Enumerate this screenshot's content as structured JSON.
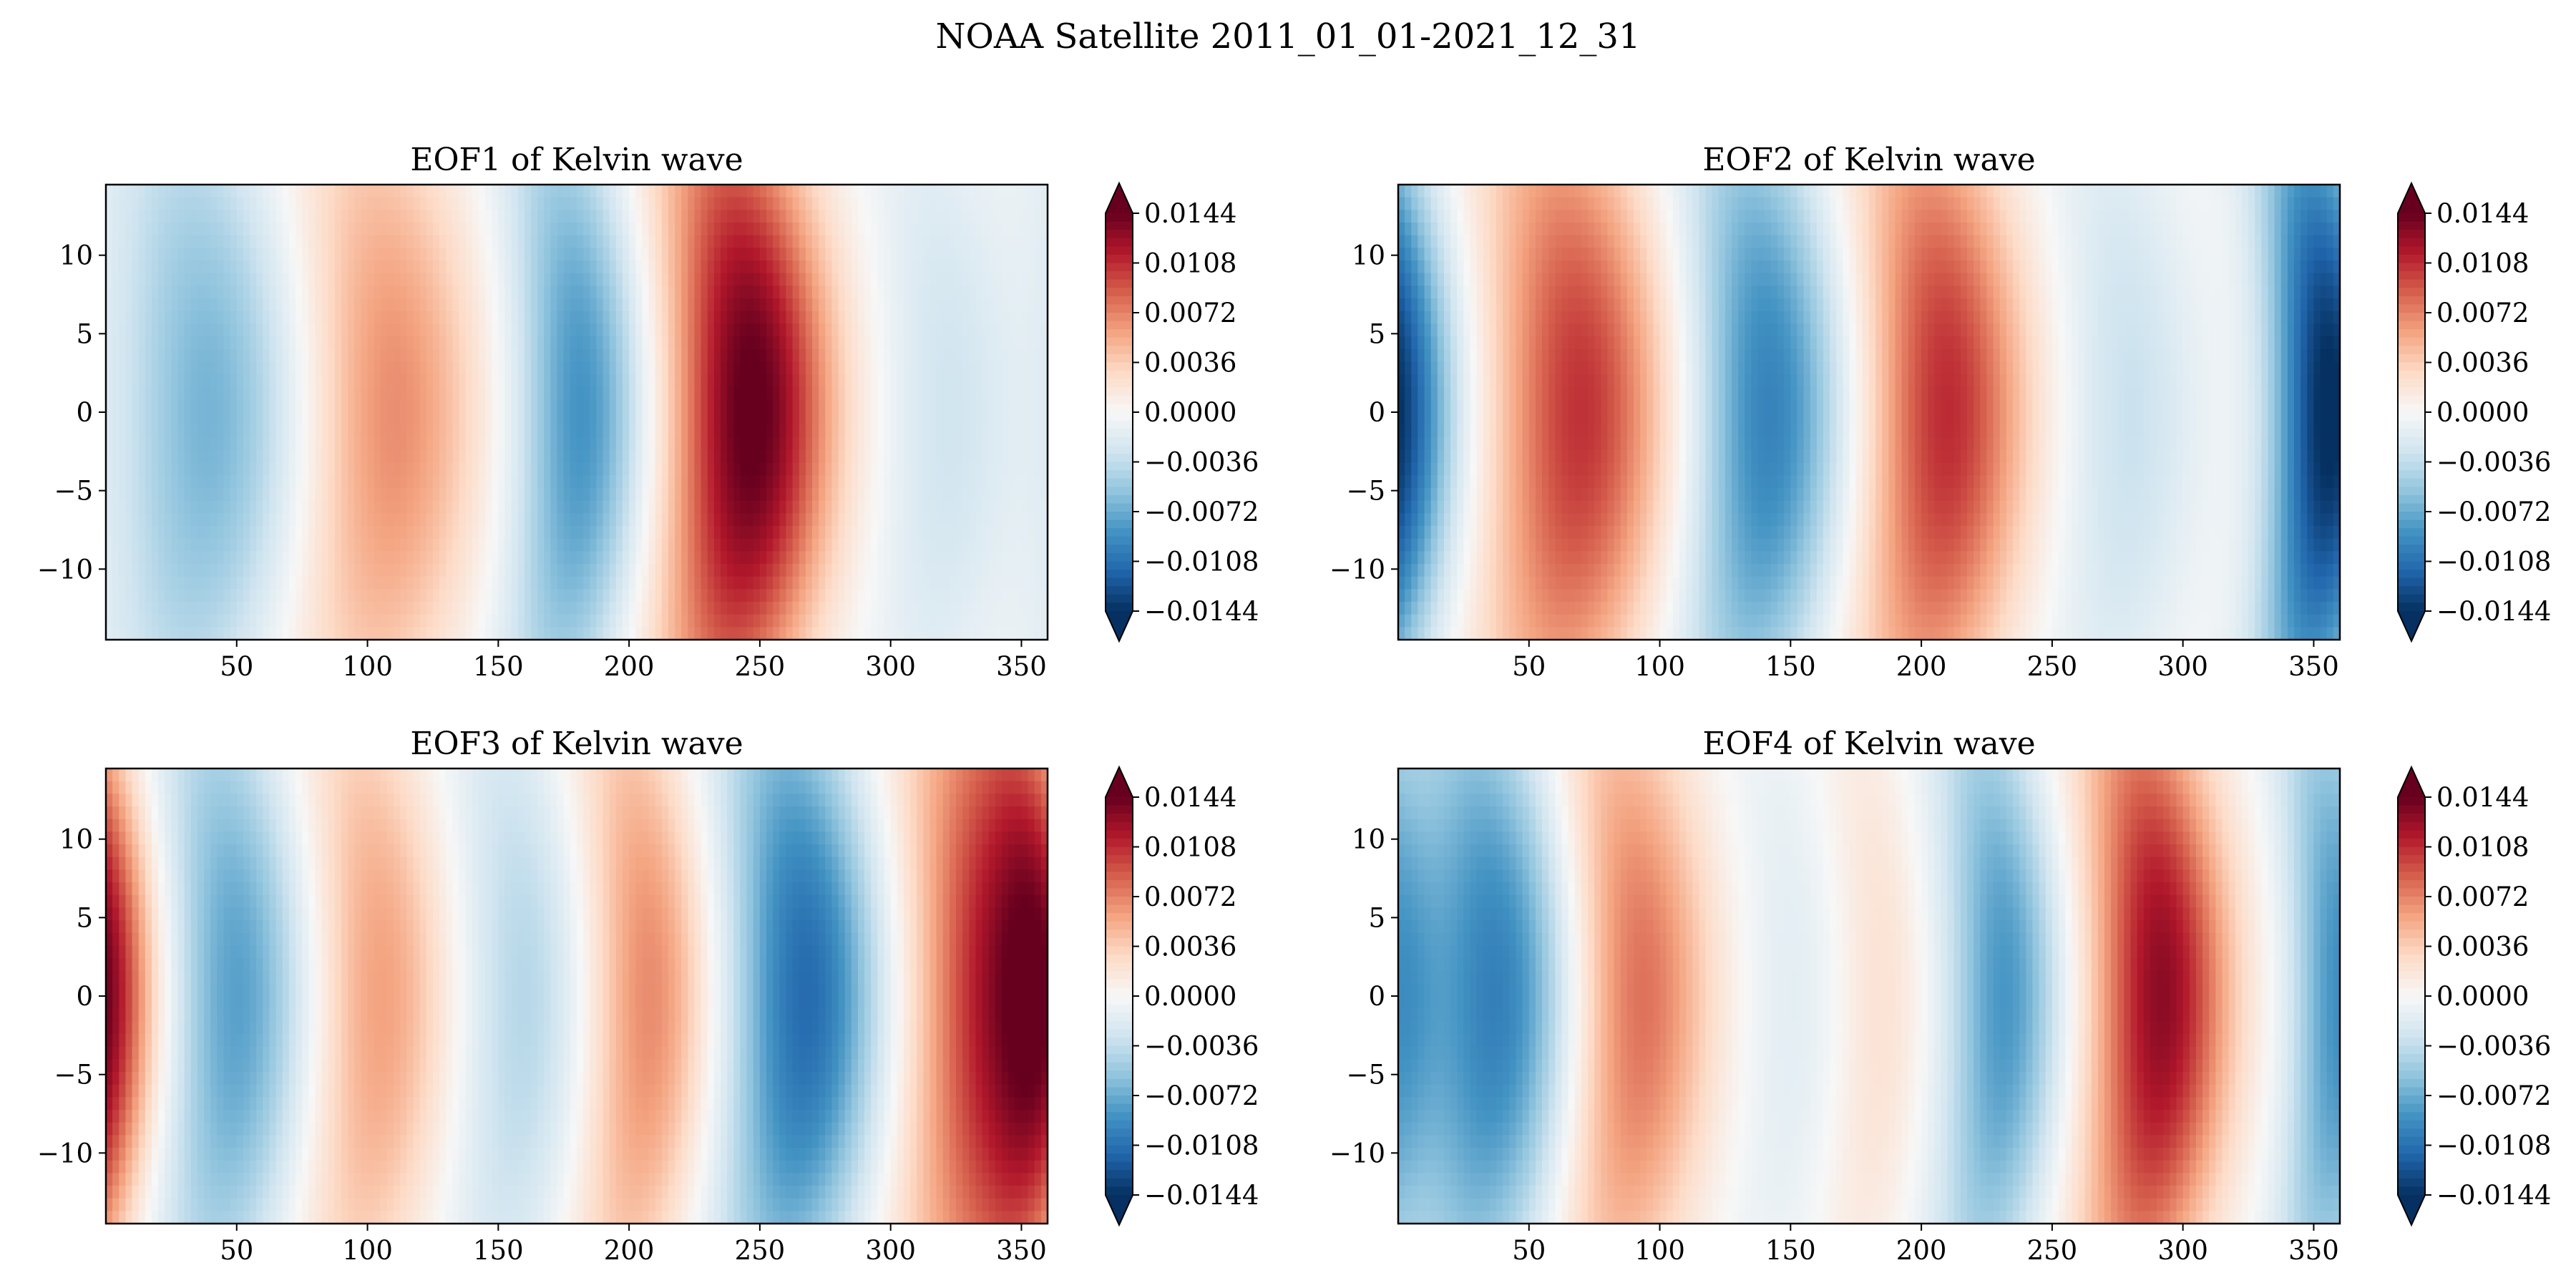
{
  "figure": {
    "suptitle": "NOAA Satellite 2011_01_01-2021_12_31"
  },
  "chart_data": [
    {
      "type": "heatmap",
      "title": "EOF1 of Kelvin wave",
      "xlabel": "",
      "ylabel": "",
      "xlim": [
        0,
        360
      ],
      "ylim": [
        -14.5,
        14.5
      ],
      "x_ticks": [
        "50",
        "100",
        "150",
        "200",
        "250",
        "300",
        "350"
      ],
      "y_ticks": [
        "10",
        "5",
        "0",
        "−5",
        "−10"
      ],
      "colorbar_ticks": [
        "0.0144",
        "0.0108",
        "0.0072",
        "0.0036",
        "0.0000",
        "−0.0036",
        "−0.0072",
        "−0.0108",
        "−0.0144"
      ],
      "colorbar_range": [
        -0.0144,
        0.0144
      ],
      "colormap": "RdBu_r",
      "extend": "both",
      "bands": [
        {
          "lon": 40,
          "amp": -0.0068,
          "width": 24
        },
        {
          "lon": 110,
          "amp": 0.0068,
          "width": 23
        },
        {
          "lon": 182,
          "amp": -0.0088,
          "width": 17
        },
        {
          "lon": 247,
          "amp": 0.015,
          "width": 21
        },
        {
          "lon": 322,
          "amp": -0.0028,
          "width": 18
        }
      ]
    },
    {
      "type": "heatmap",
      "title": "EOF2 of Kelvin wave",
      "xlabel": "",
      "ylabel": "",
      "xlim": [
        0,
        360
      ],
      "ylim": [
        -14.5,
        14.5
      ],
      "x_ticks": [
        "50",
        "100",
        "150",
        "200",
        "250",
        "300",
        "350"
      ],
      "y_ticks": [
        "10",
        "5",
        "0",
        "−5",
        "−10"
      ],
      "colorbar_ticks": [
        "0.0144",
        "0.0108",
        "0.0072",
        "0.0036",
        "0.0000",
        "−0.0036",
        "−0.0072",
        "−0.0108",
        "−0.0144"
      ],
      "colorbar_range": [
        -0.0144,
        0.0144
      ],
      "colormap": "RdBu_r",
      "extend": "both",
      "bands": [
        {
          "lon": 3,
          "amp": -0.0075,
          "width": 16
        },
        {
          "lon": 70,
          "amp": 0.0105,
          "width": 23
        },
        {
          "lon": 142,
          "amp": -0.0098,
          "width": 20
        },
        {
          "lon": 210,
          "amp": 0.0108,
          "width": 21
        },
        {
          "lon": 280,
          "amp": -0.0032,
          "width": 18
        },
        {
          "lon": 352,
          "amp": -0.0085,
          "width": 14
        }
      ]
    },
    {
      "type": "heatmap",
      "title": "EOF3 of Kelvin wave",
      "xlabel": "",
      "ylabel": "",
      "xlim": [
        0,
        360
      ],
      "ylim": [
        -14.5,
        14.5
      ],
      "x_ticks": [
        "50",
        "100",
        "150",
        "200",
        "250",
        "300",
        "350"
      ],
      "y_ticks": [
        "10",
        "5",
        "0",
        "−5",
        "−10"
      ],
      "colorbar_ticks": [
        "0.0144",
        "0.0108",
        "0.0072",
        "0.0036",
        "0.0000",
        "−0.0036",
        "−0.0072",
        "−0.0108",
        "−0.0144"
      ],
      "colorbar_range": [
        -0.0144,
        0.0144
      ],
      "colormap": "RdBu_r",
      "extend": "both",
      "bands": [
        {
          "lon": 0,
          "amp": 0.006,
          "width": 12
        },
        {
          "lon": 50,
          "amp": -0.008,
          "width": 19
        },
        {
          "lon": 105,
          "amp": 0.006,
          "width": 18
        },
        {
          "lon": 160,
          "amp": -0.0042,
          "width": 17
        },
        {
          "lon": 208,
          "amp": 0.007,
          "width": 16
        },
        {
          "lon": 268,
          "amp": -0.0112,
          "width": 20
        },
        {
          "lon": 342,
          "amp": 0.0122,
          "width": 22
        }
      ]
    },
    {
      "type": "heatmap",
      "title": "EOF4 of Kelvin wave",
      "xlabel": "",
      "ylabel": "",
      "xlim": [
        0,
        360
      ],
      "ylim": [
        -14.5,
        14.5
      ],
      "x_ticks": [
        "50",
        "100",
        "150",
        "200",
        "250",
        "300",
        "350"
      ],
      "y_ticks": [
        "10",
        "5",
        "0",
        "−5",
        "−10"
      ],
      "colorbar_ticks": [
        "0.0144",
        "0.0108",
        "0.0072",
        "0.0036",
        "0.0000",
        "−0.0036",
        "−0.0072",
        "−0.0108",
        "−0.0144"
      ],
      "colorbar_range": [
        -0.0144,
        0.0144
      ],
      "colormap": "RdBu_r",
      "extend": "both",
      "bands": [
        {
          "lon": 38,
          "amp": -0.01,
          "width": 21
        },
        {
          "lon": 92,
          "amp": 0.0082,
          "width": 19
        },
        {
          "lon": 150,
          "amp": -0.0016,
          "width": 14
        },
        {
          "lon": 185,
          "amp": 0.0022,
          "width": 12
        },
        {
          "lon": 232,
          "amp": -0.0085,
          "width": 15
        },
        {
          "lon": 292,
          "amp": 0.013,
          "width": 18
        },
        {
          "lon": 358,
          "amp": -0.0072,
          "width": 12
        }
      ]
    }
  ]
}
